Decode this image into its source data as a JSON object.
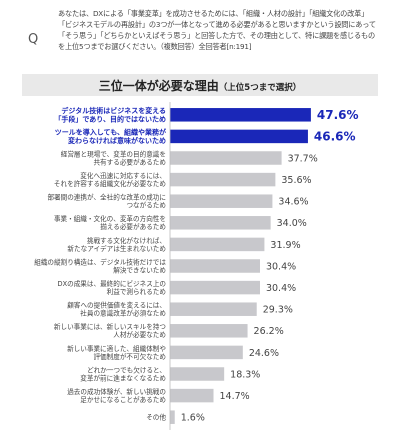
{
  "question": {
    "mark": "Q",
    "text": "あなたは、DXによる「事業変革」を成功させるためには、「組織・人材の設計」「組織文化の改革」「ビジネスモデルの再設計」の3つが一体となって進める必要があると思いますかという設問にあって「そう思う」「どちらかといえばそう思う」と回答した方で、その理由として、特に課題を感じるものを上位5つまでお選びください。（複数回答）全回答者[n:191]"
  },
  "banner": {
    "title": "三位一体が必要な理由",
    "subtitle": "（上位5つまで選択）"
  },
  "colors": {
    "highlight": "#1a27b8",
    "bar": "#c8c8cc",
    "axis": "#bbbbbb",
    "banner_bg": "#e9e9e9"
  },
  "chart_data": {
    "type": "bar",
    "orientation": "horizontal",
    "unit": "%",
    "xlim": [
      0,
      50
    ],
    "highlighted": [
      0,
      1
    ],
    "categories": [
      [
        "デジタル技術はビジネスを変える",
        "「手段」であり、目的ではないため"
      ],
      [
        "ツールを導入しても、組織や業務が",
        "変わらなければ意味がないため"
      ],
      [
        "経営層と現場で、変革の目的意識を",
        "共有する必要があるため"
      ],
      [
        "変化へ迅速に対応するには、",
        "それを許容する組織文化が必要なため"
      ],
      [
        "部署間の連携が、全社的な改革の成功に",
        "つながるため"
      ],
      [
        "事業・組織・文化の、変革の方向性を",
        "揃える必要があるため"
      ],
      [
        "挑戦する文化がなければ、",
        "新たなアイデアは生まれないため"
      ],
      [
        "組織の縦割り構造は、デジタル技術だけでは",
        "解決できないため"
      ],
      [
        "DXの成果は、最終的にビジネス上の",
        "利益で測られるため"
      ],
      [
        "顧客への提供価値を変えるには、",
        "社員の意識改革が必須なため"
      ],
      [
        "新しい事業には、新しいスキルを持つ",
        "人材が必要なため"
      ],
      [
        "新しい事業に適した、組織体制や",
        "評価制度が不可欠なため"
      ],
      [
        "どれか一つでも欠けると、",
        "変革が前に進まなくなるため"
      ],
      [
        "過去の成功体験が、新しい挑戦の",
        "足かせになることがあるため"
      ],
      [
        "その他"
      ]
    ],
    "values": [
      47.6,
      46.6,
      37.7,
      35.6,
      34.6,
      34.0,
      31.9,
      30.4,
      30.4,
      29.3,
      26.2,
      24.6,
      18.3,
      14.7,
      1.6
    ]
  }
}
